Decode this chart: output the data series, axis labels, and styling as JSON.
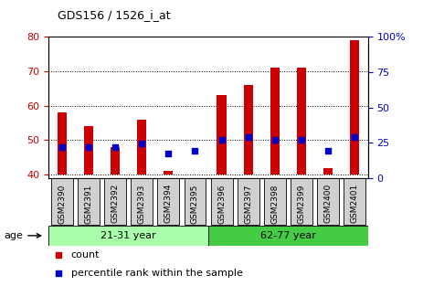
{
  "title": "GDS156 / 1526_i_at",
  "samples": [
    "GSM2390",
    "GSM2391",
    "GSM2392",
    "GSM2393",
    "GSM2394",
    "GSM2395",
    "GSM2396",
    "GSM2397",
    "GSM2398",
    "GSM2399",
    "GSM2400",
    "GSM2401"
  ],
  "count_values": [
    58,
    54,
    48,
    56,
    41,
    40,
    63,
    66,
    71,
    71,
    42,
    79
  ],
  "percentile_left_axis": [
    48,
    48,
    48,
    49,
    46,
    47,
    50,
    51,
    50,
    50,
    47,
    51
  ],
  "ylim_left": [
    39,
    80
  ],
  "ylim_right": [
    0,
    100
  ],
  "yticks_left": [
    40,
    50,
    60,
    70,
    80
  ],
  "yticks_right": [
    0,
    25,
    50,
    75,
    100
  ],
  "groups": [
    {
      "label": "21-31 year",
      "start": 0,
      "end": 5,
      "color": "#aaffaa"
    },
    {
      "label": "62-77 year",
      "start": 6,
      "end": 11,
      "color": "#44cc44"
    }
  ],
  "bar_color": "#cc0000",
  "dot_color": "#0000cc",
  "age_label": "age",
  "legend_count": "count",
  "legend_percentile": "percentile rank within the sample",
  "background_color": "#ffffff",
  "tick_label_color_left": "#cc0000",
  "tick_label_color_right": "#0000cc",
  "xlabel_box_color": "#d0d0d0",
  "bar_width": 0.35
}
